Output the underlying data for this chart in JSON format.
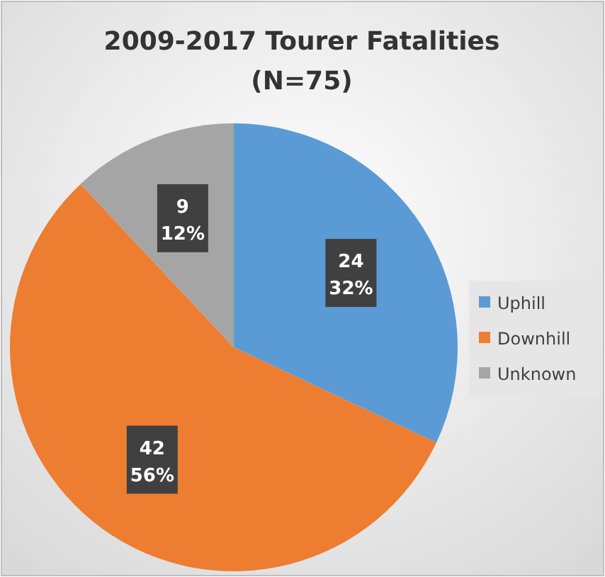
{
  "chart_data": {
    "type": "pie",
    "title": "2009-2017 Tourer Fatalities",
    "subtitle": "(N=75)",
    "categories": [
      "Uphill",
      "Downhill",
      "Unknown"
    ],
    "values": [
      24,
      42,
      9
    ],
    "colors": [
      "#5b9bd5",
      "#ed7d31",
      "#a5a5a5"
    ],
    "value_labels": [
      "24\n32%",
      "42\n56%",
      "9\n12%"
    ],
    "legend": "right"
  }
}
